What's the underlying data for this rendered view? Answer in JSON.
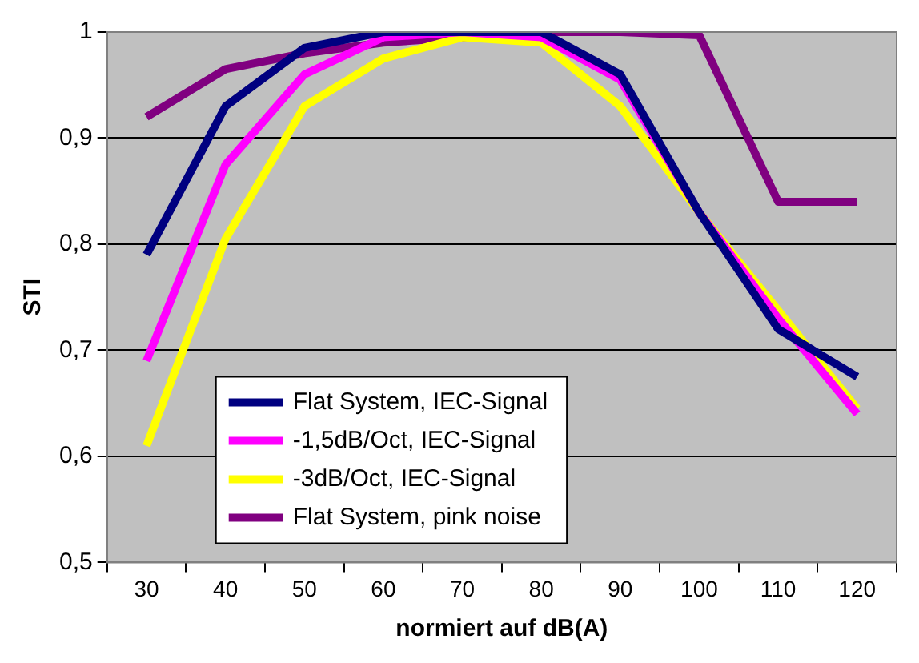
{
  "chart_data": {
    "type": "line",
    "xlabel": "normiert auf dB(A)",
    "ylabel": "STI",
    "categories": [
      "30",
      "40",
      "50",
      "60",
      "70",
      "80",
      "90",
      "100",
      "110",
      "120"
    ],
    "series": [
      {
        "name": "Flat System, IEC-Signal",
        "color": "#000080",
        "values": [
          0.79,
          0.93,
          0.985,
          1,
          1,
          1,
          0.96,
          0.83,
          0.72,
          0.675
        ]
      },
      {
        "name": "-1,5dB/Oct, IEC-Signal",
        "color": "#ff00ff",
        "values": [
          0.69,
          0.875,
          0.96,
          0.995,
          1,
          0.995,
          0.955,
          0.83,
          0.73,
          0.64
        ]
      },
      {
        "name": "-3dB/Oct, IEC-Signal",
        "color": "#ffff00",
        "values": [
          0.61,
          0.805,
          0.93,
          0.975,
          0.995,
          0.99,
          0.93,
          0.83,
          null,
          0.645
        ]
      },
      {
        "name": "Flat System, pink noise",
        "color": "#800080",
        "values": [
          0.92,
          0.965,
          0.98,
          0.99,
          null,
          1,
          1,
          0.997,
          0.84,
          0.84
        ]
      }
    ],
    "ylim": [
      0.5,
      1
    ],
    "yticks": [
      {
        "value": 0.5,
        "label": "0,5"
      },
      {
        "value": 0.6,
        "label": "0,6"
      },
      {
        "value": 0.7,
        "label": "0,7"
      },
      {
        "value": 0.8,
        "label": "0,8"
      },
      {
        "value": 0.9,
        "label": "0,9"
      },
      1
    ],
    "grid": "y",
    "legend": "bottom left",
    "marker": "none",
    "line_style": "solid"
  }
}
